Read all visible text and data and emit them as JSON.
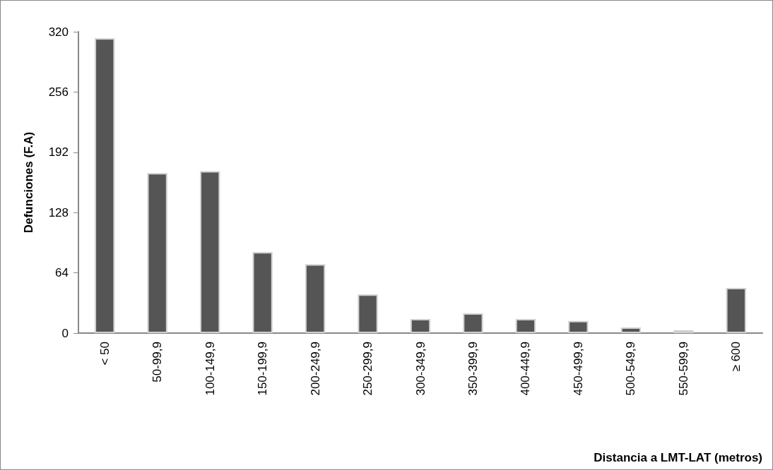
{
  "chart_data": {
    "type": "bar",
    "xlabel": "Distancia a LMT-LAT (metros)",
    "ylabel": "Defunciones (F.A)",
    "categories": [
      "< 50",
      "50-99,9",
      "100-149,9",
      "150-199,9",
      "200-249,9",
      "250-299,9",
      "300-349,9",
      "350-399,9",
      "400-449,9",
      "450-499,9",
      "500-549,9",
      "550-599,9",
      "≥ 600"
    ],
    "values": [
      313,
      170,
      172,
      86,
      73,
      41,
      15,
      21,
      15,
      13,
      6,
      3,
      48
    ],
    "color": "#555555",
    "ylim": [
      0,
      320
    ],
    "yticks": [
      0,
      64,
      128,
      192,
      256,
      320
    ],
    "grid": false
  }
}
